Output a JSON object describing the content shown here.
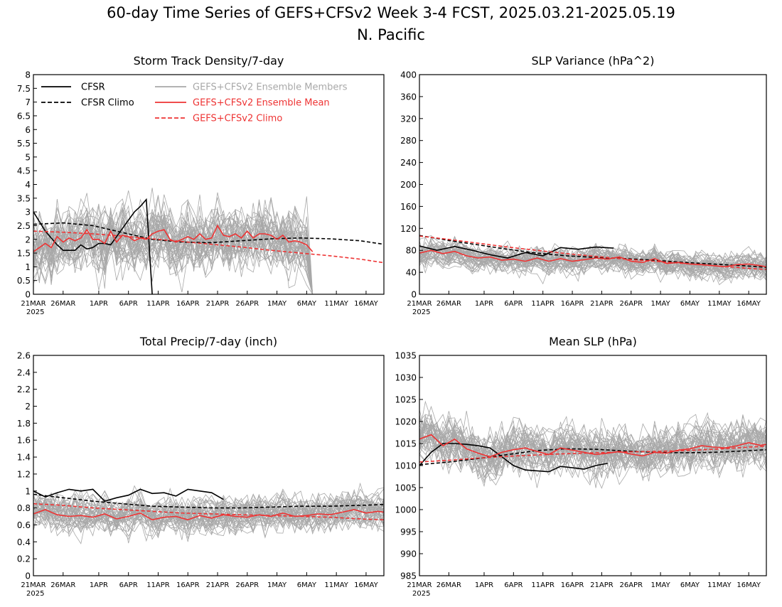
{
  "figure": {
    "title_line1": "60-day Time Series of GEFS+CFSv2 Week 3-4 FCST, 2025.03.21-2025.05.19",
    "title_line2": "N. Pacific"
  },
  "colors": {
    "cfsr": "#000000",
    "members": "#a8a8a8",
    "ensemble_mean": "#ee3333",
    "gefs_climo": "#ee3333"
  },
  "legend": {
    "cfsr": "CFSR",
    "cfsr_climo": "CFSR Climo",
    "members": "GEFS+CFSv2 Ensemble Members",
    "ens_mean": "GEFS+CFSv2 Ensemble Mean",
    "gefs_climo": "GEFS+CFSv2 Climo"
  },
  "x_axis": {
    "tick_labels": [
      "21MAR",
      "26MAR",
      "1APR",
      "6APR",
      "11APR",
      "16APR",
      "21APR",
      "26APR",
      "1MAY",
      "6MAY",
      "11MAY",
      "16MAY"
    ],
    "tick_days": [
      0,
      5,
      11,
      16,
      21,
      26,
      31,
      36,
      41,
      46,
      51,
      56
    ],
    "year_label": "2025",
    "range_days": [
      0,
      59
    ]
  },
  "chart_data": [
    {
      "type": "line",
      "title": "Storm Track Density/7-day",
      "ylim": [
        0,
        8
      ],
      "y_ticks": [
        "0",
        "0.5",
        "1",
        "1.5",
        "2",
        "2.5",
        "3",
        "3.5",
        "4",
        "4.5",
        "5",
        "5.5",
        "6",
        "6.5",
        "7",
        "7.5",
        "8"
      ],
      "x_unit": "days since 21MAR2025",
      "series": [
        {
          "name": "CFSR",
          "x": [
            0,
            2,
            4,
            5,
            6,
            7,
            8,
            9,
            10,
            11,
            12,
            13,
            14,
            15,
            16,
            17,
            18,
            19,
            20,
            21,
            22
          ],
          "y": [
            3.0,
            2.3,
            1.8,
            1.6,
            1.6,
            1.6,
            1.8,
            1.65,
            1.7,
            1.85,
            1.85,
            1.8,
            2.1,
            2.4,
            2.7,
            3.0,
            3.2,
            3.45,
            0.0,
            null,
            null
          ]
        },
        {
          "name": "CFSR Climo",
          "x": [
            0,
            5,
            10,
            15,
            20,
            25,
            30,
            35,
            40,
            45,
            50,
            55,
            59
          ],
          "y": [
            2.55,
            2.6,
            2.5,
            2.25,
            2.0,
            1.9,
            1.88,
            1.95,
            2.02,
            2.05,
            2.02,
            1.95,
            1.82
          ]
        },
        {
          "name": "GEFS+CFSv2 Ensemble Mean",
          "x": [
            0,
            1,
            2,
            3,
            4,
            5,
            6,
            7,
            8,
            9,
            10,
            11,
            12,
            13,
            14,
            15,
            16,
            17,
            18,
            19,
            20,
            21,
            22,
            23,
            24,
            25,
            26,
            27,
            28,
            29,
            30,
            31,
            32,
            33,
            34,
            35,
            36,
            37,
            38,
            39,
            40,
            41,
            42,
            43,
            44,
            45,
            46,
            47
          ],
          "y": [
            1.55,
            1.7,
            1.85,
            1.7,
            2.1,
            1.9,
            2.05,
            1.95,
            2.05,
            2.35,
            2.0,
            2.0,
            1.85,
            2.3,
            1.9,
            2.15,
            2.1,
            1.95,
            2.05,
            2.0,
            2.2,
            2.3,
            2.35,
            2.0,
            1.9,
            2.0,
            2.1,
            2.0,
            2.2,
            2.0,
            2.05,
            2.5,
            2.15,
            2.1,
            2.2,
            2.05,
            2.3,
            2.05,
            2.2,
            2.2,
            2.15,
            2.0,
            2.15,
            1.9,
            1.95,
            1.9,
            1.8,
            1.55
          ]
        },
        {
          "name": "GEFS+CFSv2 Climo",
          "x": [
            0,
            5,
            10,
            15,
            20,
            25,
            30,
            35,
            40,
            45,
            50,
            55,
            59
          ],
          "y": [
            2.3,
            2.26,
            2.2,
            2.12,
            2.02,
            1.92,
            1.82,
            1.72,
            1.6,
            1.5,
            1.4,
            1.28,
            1.15
          ]
        }
      ]
    },
    {
      "type": "line",
      "title": "SLP Variance (hPa^2)",
      "ylim": [
        0,
        400
      ],
      "y_ticks": [
        "0",
        "40",
        "80",
        "120",
        "160",
        "200",
        "240",
        "280",
        "320",
        "360",
        "400"
      ],
      "x_unit": "days since 21MAR2025",
      "series": [
        {
          "name": "CFSR",
          "x": [
            0,
            3,
            6,
            9,
            12,
            15,
            18,
            21,
            24,
            27,
            30,
            33
          ],
          "y": [
            88,
            80,
            87,
            80,
            72,
            66,
            76,
            70,
            85,
            82,
            86,
            84
          ]
        },
        {
          "name": "CFSR Climo",
          "x": [
            0,
            5,
            10,
            15,
            20,
            25,
            30,
            35,
            40,
            45,
            50,
            55,
            59
          ],
          "y": [
            107,
            98,
            90,
            82,
            75,
            70,
            67,
            65,
            62,
            58,
            55,
            52,
            49
          ]
        },
        {
          "name": "GEFS+CFSv2 Ensemble Mean",
          "x": [
            0,
            2,
            4,
            6,
            8,
            10,
            12,
            14,
            16,
            18,
            20,
            22,
            24,
            26,
            28,
            30,
            32,
            34,
            36,
            38,
            40,
            42,
            44,
            46,
            48,
            50,
            52,
            54,
            56,
            58,
            59
          ],
          "y": [
            75,
            80,
            74,
            78,
            70,
            66,
            68,
            62,
            64,
            60,
            66,
            60,
            65,
            60,
            63,
            66,
            64,
            68,
            60,
            58,
            65,
            56,
            58,
            55,
            54,
            52,
            50,
            54,
            55,
            52,
            50
          ]
        },
        {
          "name": "GEFS+CFSv2 Climo",
          "x": [
            0,
            5,
            10,
            15,
            20,
            25,
            30,
            35,
            40,
            45,
            50,
            55,
            59
          ],
          "y": [
            106,
            100,
            93,
            86,
            80,
            74,
            69,
            64,
            60,
            56,
            52,
            48,
            45
          ]
        }
      ]
    },
    {
      "type": "line",
      "title": "Total Precip/7-day (inch)",
      "ylim": [
        0,
        2.6
      ],
      "y_ticks": [
        "0",
        "0.2",
        "0.4",
        "0.6",
        "0.8",
        "1",
        "1.2",
        "1.4",
        "1.6",
        "1.8",
        "2",
        "2.2",
        "2.4",
        "2.6"
      ],
      "x_unit": "days since 21MAR2025",
      "series": [
        {
          "name": "CFSR",
          "x": [
            0,
            2,
            4,
            6,
            8,
            10,
            12,
            14,
            16,
            18,
            20,
            22,
            24,
            26,
            28,
            30,
            32
          ],
          "y": [
            1.0,
            0.93,
            0.98,
            1.02,
            1.0,
            1.02,
            0.88,
            0.92,
            0.95,
            1.02,
            0.97,
            0.98,
            0.94,
            1.02,
            1.0,
            0.98,
            0.9
          ]
        },
        {
          "name": "CFSR Climo",
          "x": [
            0,
            5,
            10,
            15,
            20,
            25,
            30,
            35,
            40,
            45,
            50,
            55,
            59
          ],
          "y": [
            0.96,
            0.92,
            0.88,
            0.85,
            0.82,
            0.81,
            0.8,
            0.8,
            0.81,
            0.82,
            0.82,
            0.83,
            0.84
          ]
        },
        {
          "name": "GEFS+CFSv2 Ensemble Mean",
          "x": [
            0,
            2,
            4,
            6,
            8,
            10,
            12,
            14,
            16,
            18,
            20,
            22,
            24,
            26,
            28,
            30,
            32,
            34,
            36,
            38,
            40,
            42,
            44,
            46,
            48,
            50,
            52,
            54,
            56,
            58,
            59
          ],
          "y": [
            0.73,
            0.78,
            0.72,
            0.7,
            0.71,
            0.69,
            0.73,
            0.67,
            0.7,
            0.74,
            0.66,
            0.69,
            0.7,
            0.66,
            0.71,
            0.68,
            0.72,
            0.7,
            0.69,
            0.72,
            0.7,
            0.74,
            0.7,
            0.71,
            0.73,
            0.72,
            0.75,
            0.78,
            0.74,
            0.76,
            0.75
          ]
        },
        {
          "name": "GEFS+CFSv2 Climo",
          "x": [
            0,
            5,
            10,
            15,
            20,
            25,
            30,
            35,
            40,
            45,
            50,
            55,
            59
          ],
          "y": [
            0.85,
            0.83,
            0.8,
            0.78,
            0.76,
            0.74,
            0.73,
            0.72,
            0.71,
            0.7,
            0.69,
            0.67,
            0.66
          ]
        }
      ]
    },
    {
      "type": "line",
      "title": "Mean SLP (hPa)",
      "ylim": [
        985,
        1035
      ],
      "y_ticks": [
        "985",
        "990",
        "995",
        "1000",
        "1005",
        "1010",
        "1015",
        "1020",
        "1025",
        "1030",
        "1035"
      ],
      "x_unit": "days since 21MAR2025",
      "series": [
        {
          "name": "CFSR",
          "x": [
            0,
            2,
            4,
            6,
            8,
            10,
            12,
            14,
            16,
            18,
            20,
            22,
            24,
            26,
            28,
            30,
            32
          ],
          "y": [
            1010,
            1013,
            1015,
            1015,
            1014.8,
            1014.5,
            1014,
            1012,
            1010,
            1009,
            1008.8,
            1008.6,
            1009.8,
            1009.5,
            1009.2,
            1010,
            1010.5
          ]
        },
        {
          "name": "CFSR Climo",
          "x": [
            0,
            5,
            10,
            15,
            20,
            25,
            30,
            35,
            40,
            45,
            50,
            55,
            59
          ],
          "y": [
            1010.2,
            1010.8,
            1011.6,
            1012.5,
            1013.4,
            1013.8,
            1013.7,
            1013.3,
            1013,
            1012.9,
            1013,
            1013.3,
            1013.6
          ]
        },
        {
          "name": "GEFS+CFSv2 Ensemble Mean",
          "x": [
            0,
            2,
            4,
            6,
            8,
            10,
            12,
            14,
            16,
            18,
            20,
            22,
            24,
            26,
            28,
            30,
            32,
            34,
            36,
            38,
            40,
            42,
            44,
            46,
            48,
            50,
            52,
            54,
            56,
            58,
            59
          ],
          "y": [
            1016,
            1017,
            1014.5,
            1016,
            1013.8,
            1012.8,
            1012,
            1013,
            1013.6,
            1014,
            1013.2,
            1012.5,
            1014,
            1013.5,
            1013,
            1012.5,
            1012.8,
            1013.2,
            1012.6,
            1012.2,
            1013,
            1012.8,
            1013.5,
            1013.8,
            1014.5,
            1014.2,
            1014,
            1014.5,
            1015.2,
            1014.6,
            1014.8
          ]
        },
        {
          "name": "GEFS+CFSv2 Climo",
          "x": [
            0,
            5,
            10,
            15,
            20,
            25,
            30,
            35,
            40,
            45,
            50,
            55,
            59
          ],
          "y": [
            1010.8,
            1011.2,
            1011.7,
            1012.1,
            1012.4,
            1012.7,
            1012.9,
            1013.1,
            1013.2,
            1013.4,
            1013.7,
            1014.1,
            1014.4
          ]
        }
      ]
    }
  ]
}
